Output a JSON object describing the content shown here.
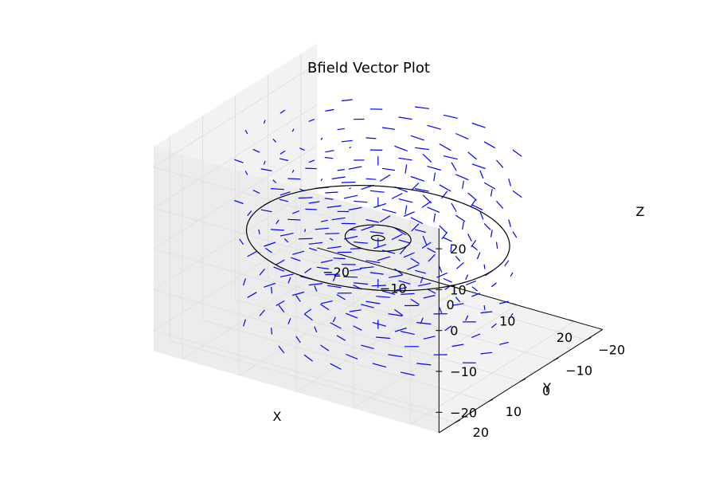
{
  "chart_data": {
    "type": "3d-quiver",
    "title": "Bfield Vector Plot",
    "xlabel": "X",
    "ylabel": "Y",
    "zlabel": "Z",
    "xlim": [
      -25,
      25
    ],
    "ylim": [
      -25,
      25
    ],
    "zlim": [
      -25,
      25
    ],
    "x_ticks": [
      "−20",
      "−10",
      "0",
      "10",
      "20"
    ],
    "y_ticks": [
      "−20",
      "−10",
      "0",
      "10",
      "20"
    ],
    "z_ticks": [
      "−20",
      "−10",
      "0",
      "10",
      "20"
    ],
    "grid": true,
    "rings": [
      {
        "z": 0,
        "radius": 20
      },
      {
        "z": 0,
        "radius": 5
      },
      {
        "z": 0,
        "radius": 1
      }
    ],
    "vector_grid": {
      "x": [
        -20,
        -15,
        -10,
        -5,
        0,
        5,
        10,
        15,
        20
      ],
      "y": [
        -20,
        -15,
        -10,
        -5,
        0,
        5,
        10,
        15,
        20
      ],
      "z": [
        -20,
        -10,
        0,
        10,
        20
      ]
    },
    "colors": {
      "vectors": "#0000ff",
      "rings": "#000000",
      "pane": "#f2f2f2",
      "grid": "#e0e0e0"
    }
  }
}
